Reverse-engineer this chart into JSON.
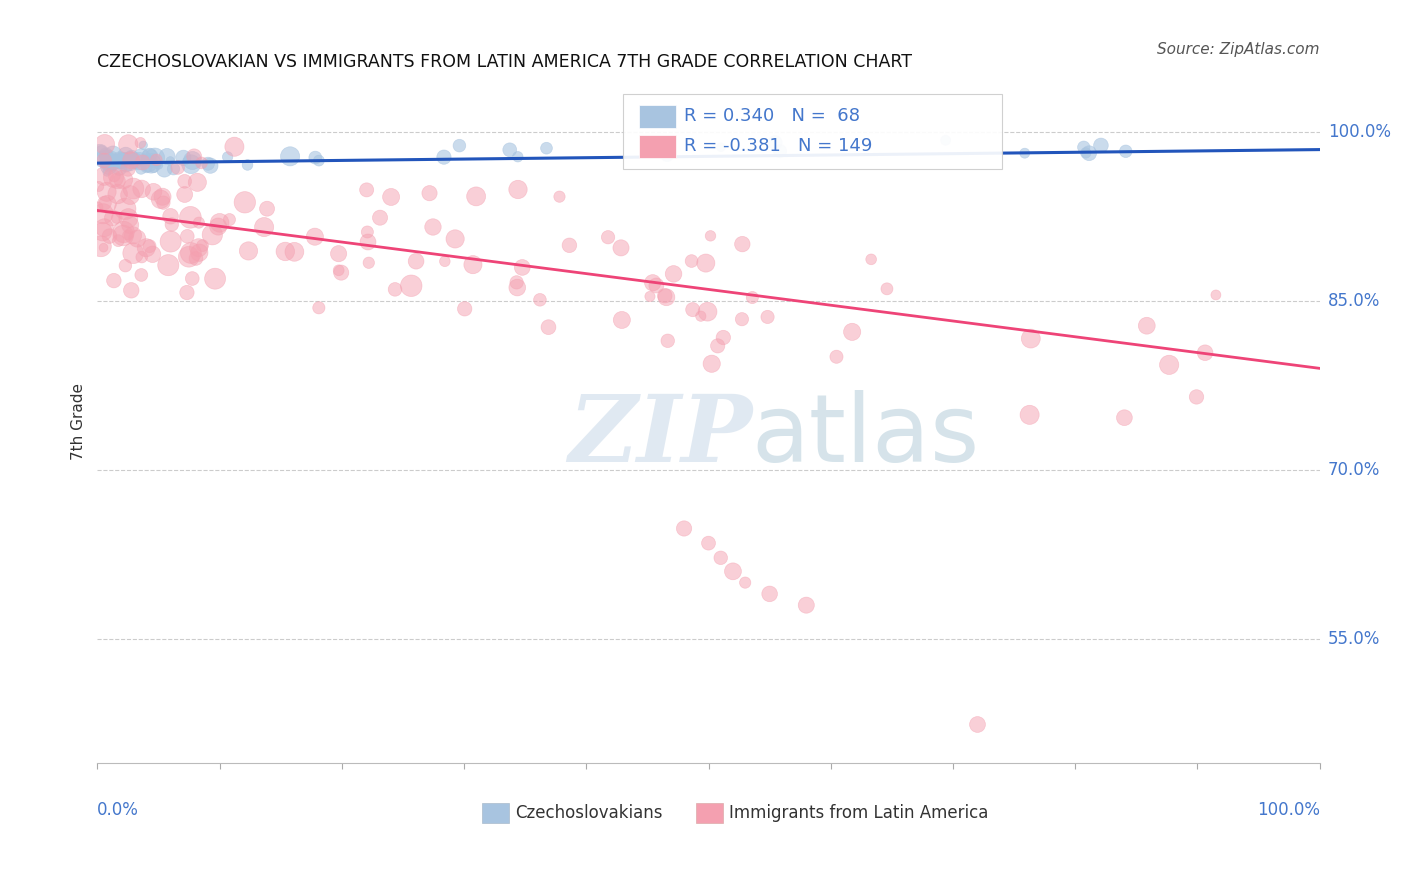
{
  "title": "CZECHOSLOVAKIAN VS IMMIGRANTS FROM LATIN AMERICA 7TH GRADE CORRELATION CHART",
  "source": "Source: ZipAtlas.com",
  "ylabel": "7th Grade",
  "ytick_labels": [
    "100.0%",
    "85.0%",
    "70.0%",
    "55.0%"
  ],
  "ytick_values": [
    1.0,
    0.85,
    0.7,
    0.55
  ],
  "legend_blue_r": "R = 0.340",
  "legend_blue_n": "N =  68",
  "legend_pink_r": "R = -0.381",
  "legend_pink_n": "N = 149",
  "blue_color": "#A8C4E0",
  "blue_edge_color": "#7AAAD0",
  "pink_color": "#F4A0B0",
  "pink_edge_color": "#E87090",
  "blue_line_color": "#2255BB",
  "pink_line_color": "#EE4477",
  "watermark_zip_color": "#C8D8E8",
  "watermark_atlas_color": "#99BBCC",
  "background_color": "#FFFFFF",
  "grid_color": "#CCCCCC",
  "label_color": "#4477CC",
  "text_color": "#333333",
  "ymin": 0.44,
  "ymax": 1.045,
  "xmin": 0.0,
  "xmax": 1.0,
  "blue_line_start_y": 0.972,
  "blue_line_end_y": 0.984,
  "pink_line_start_y": 0.93,
  "pink_line_end_y": 0.79
}
